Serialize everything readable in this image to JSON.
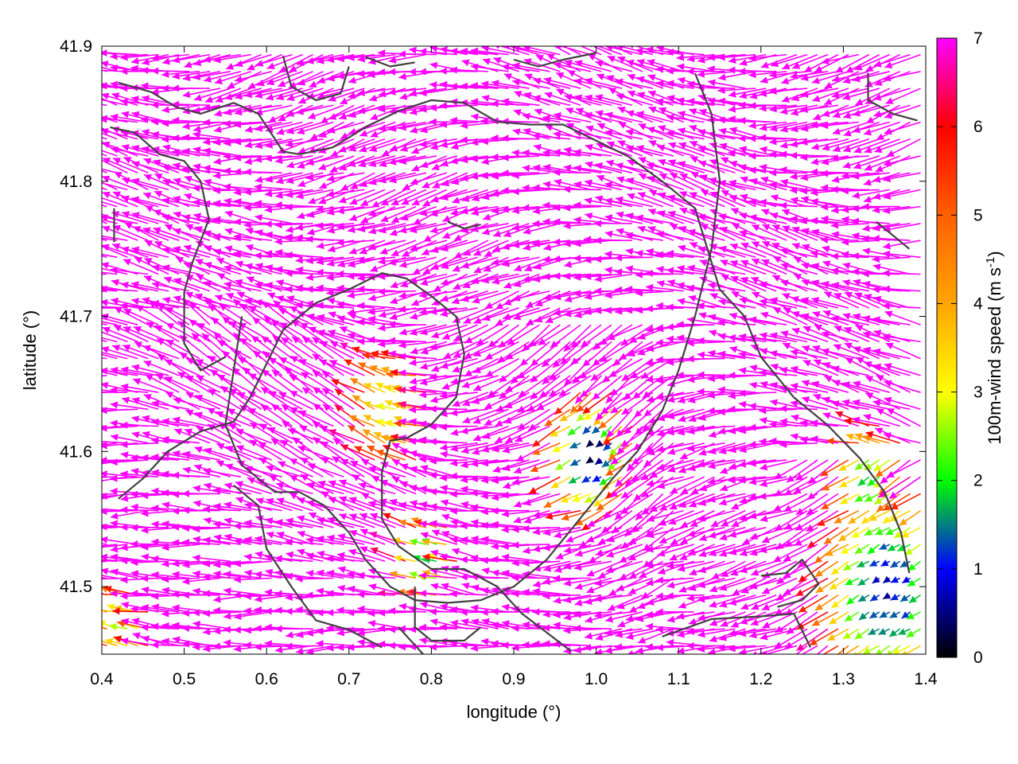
{
  "chart_data": {
    "type": "vector-field",
    "xlabel": "longitude (°)",
    "ylabel": "latitude (°)",
    "colorbar_label": "100m-wind speed (m s-1)",
    "colorbar_label_parts": {
      "pre": "100m-wind speed (m s",
      "sup": "-1",
      "post": ")"
    },
    "xlim": [
      0.4,
      1.4
    ],
    "ylim": [
      41.45,
      41.9
    ],
    "x_ticks": [
      0.4,
      0.5,
      0.6,
      0.7,
      0.8,
      0.9,
      1.0,
      1.1,
      1.2,
      1.3,
      1.4
    ],
    "x_tick_labels": [
      "0.4",
      "0.5",
      "0.6",
      "0.7",
      "0.8",
      "0.9",
      "1.0",
      "1.1",
      "1.2",
      "1.3",
      "1.4"
    ],
    "y_ticks": [
      41.5,
      41.6,
      41.7,
      41.8,
      41.9
    ],
    "y_tick_labels": [
      "41.5",
      "41.6",
      "41.7",
      "41.8",
      "41.9"
    ],
    "colorbar_range": [
      0,
      7
    ],
    "colorbar_ticks": [
      0,
      1,
      2,
      3,
      4,
      5,
      6,
      7
    ],
    "colorbar_tick_labels": [
      "0",
      "1",
      "2",
      "3",
      "4",
      "5",
      "6",
      "7"
    ],
    "colormap": [
      {
        "v": 0.0,
        "color": "#000000"
      },
      {
        "v": 1.0,
        "color": "#0000ff"
      },
      {
        "v": 2.0,
        "color": "#00ff00"
      },
      {
        "v": 3.0,
        "color": "#ffff00"
      },
      {
        "v": 4.0,
        "color": "#ffa500"
      },
      {
        "v": 5.0,
        "color": "#ff6000"
      },
      {
        "v": 6.0,
        "color": "#ff0000"
      },
      {
        "v": 7.0,
        "color": "#ff00ff"
      }
    ],
    "wind_field": {
      "grid_step_lon": 0.0125,
      "grid_step_lat": 0.0125,
      "dominant_direction": "from east to west",
      "low_speed_zones": [
        {
          "lon": 1.0,
          "lat": 41.6,
          "radius": 0.06,
          "min_speed": 0.3
        },
        {
          "lon": 1.36,
          "lat": 41.5,
          "radius": 0.1,
          "min_speed": 0.8
        },
        {
          "lon": 1.34,
          "lat": 41.58,
          "radius": 0.05,
          "min_speed": 1.8
        },
        {
          "lon": 0.8,
          "lat": 41.52,
          "radius": 0.04,
          "min_speed": 1.5
        },
        {
          "lon": 0.76,
          "lat": 41.63,
          "radius": 0.06,
          "min_speed": 3.0
        },
        {
          "lon": 0.43,
          "lat": 41.47,
          "radius": 0.04,
          "min_speed": 2.5
        }
      ],
      "high_speed_cap": 7
    },
    "contours": [
      [
        [
          0.42,
          41.873
        ],
        [
          0.46,
          41.866
        ],
        [
          0.49,
          41.855
        ],
        [
          0.52,
          41.85
        ],
        [
          0.56,
          41.858
        ],
        [
          0.59,
          41.85
        ],
        [
          0.62,
          41.822
        ],
        [
          0.64,
          41.82
        ],
        [
          0.68,
          41.825
        ],
        [
          0.72,
          41.84
        ],
        [
          0.76,
          41.852
        ],
        [
          0.8,
          41.86
        ],
        [
          0.84,
          41.858
        ],
        [
          0.88,
          41.844
        ],
        [
          0.92,
          41.842
        ],
        [
          0.96,
          41.842
        ],
        [
          1.0,
          41.83
        ],
        [
          1.04,
          41.818
        ],
        [
          1.08,
          41.8
        ],
        [
          1.12,
          41.78
        ],
        [
          1.15,
          41.72
        ],
        [
          1.18,
          41.7
        ],
        [
          1.2,
          41.67
        ],
        [
          1.24,
          41.64
        ],
        [
          1.28,
          41.62
        ],
        [
          1.32,
          41.595
        ],
        [
          1.35,
          41.57
        ],
        [
          1.37,
          41.54
        ],
        [
          1.38,
          41.51
        ]
      ],
      [
        [
          0.41,
          41.84
        ],
        [
          0.44,
          41.836
        ],
        [
          0.47,
          41.82
        ],
        [
          0.5,
          41.815
        ],
        [
          0.52,
          41.8
        ],
        [
          0.53,
          41.772
        ],
        [
          0.51,
          41.74
        ],
        [
          0.5,
          41.718
        ],
        [
          0.5,
          41.68
        ],
        [
          0.52,
          41.66
        ],
        [
          0.55,
          41.67
        ]
      ],
      [
        [
          0.42,
          41.565
        ],
        [
          0.45,
          41.58
        ],
        [
          0.48,
          41.6
        ],
        [
          0.52,
          41.615
        ],
        [
          0.56,
          41.622
        ],
        [
          0.58,
          41.64
        ],
        [
          0.6,
          41.665
        ],
        [
          0.62,
          41.69
        ],
        [
          0.66,
          41.71
        ],
        [
          0.7,
          41.72
        ],
        [
          0.74,
          41.732
        ],
        [
          0.77,
          41.728
        ],
        [
          0.8,
          41.715
        ],
        [
          0.83,
          41.7
        ],
        [
          0.84,
          41.672
        ],
        [
          0.83,
          41.64
        ],
        [
          0.8,
          41.62
        ],
        [
          0.77,
          41.61
        ],
        [
          0.75,
          41.608
        ],
        [
          0.74,
          41.585
        ],
        [
          0.74,
          41.55
        ],
        [
          0.76,
          41.53
        ],
        [
          0.8,
          41.513
        ],
        [
          0.84,
          41.513
        ],
        [
          0.88,
          41.5
        ],
        [
          0.91,
          41.48
        ],
        [
          0.94,
          41.466
        ],
        [
          0.97,
          41.452
        ]
      ],
      [
        [
          0.56,
          41.575
        ],
        [
          0.59,
          41.56
        ],
        [
          0.6,
          41.528
        ],
        [
          0.63,
          41.5
        ],
        [
          0.66,
          41.475
        ],
        [
          0.7,
          41.468
        ],
        [
          0.74,
          41.455
        ]
      ],
      [
        [
          0.57,
          41.7
        ],
        [
          0.56,
          41.66
        ],
        [
          0.55,
          41.62
        ],
        [
          0.57,
          41.59
        ],
        [
          0.61,
          41.57
        ],
        [
          0.64,
          41.57
        ],
        [
          0.67,
          41.56
        ],
        [
          0.7,
          41.54
        ],
        [
          0.72,
          41.52
        ],
        [
          0.75,
          41.5
        ],
        [
          0.78,
          41.49
        ],
        [
          0.82,
          41.488
        ],
        [
          0.86,
          41.49
        ],
        [
          0.9,
          41.5
        ],
        [
          0.94,
          41.52
        ],
        [
          0.98,
          41.55
        ],
        [
          1.02,
          41.58
        ],
        [
          1.05,
          41.6
        ],
        [
          1.08,
          41.63
        ],
        [
          1.1,
          41.66
        ],
        [
          1.12,
          41.7
        ],
        [
          1.14,
          41.75
        ],
        [
          1.15,
          41.8
        ],
        [
          1.14,
          41.85
        ],
        [
          1.12,
          41.88
        ]
      ],
      [
        [
          0.78,
          41.5
        ],
        [
          0.78,
          41.47
        ],
        [
          0.8,
          41.46
        ],
        [
          0.84,
          41.46
        ],
        [
          0.86,
          41.47
        ]
      ],
      [
        [
          0.76,
          41.47
        ],
        [
          0.79,
          41.45
        ]
      ],
      [
        [
          1.2,
          41.508
        ],
        [
          1.23,
          41.51
        ],
        [
          1.25,
          41.52
        ],
        [
          1.27,
          41.502
        ],
        [
          1.25,
          41.49
        ],
        [
          1.22,
          41.485
        ]
      ],
      [
        [
          1.08,
          41.463
        ],
        [
          1.14,
          41.476
        ],
        [
          1.2,
          41.478
        ],
        [
          1.24,
          41.48
        ],
        [
          1.26,
          41.455
        ]
      ],
      [
        [
          0.62,
          41.893
        ],
        [
          0.63,
          41.87
        ],
        [
          0.66,
          41.86
        ],
        [
          0.69,
          41.865
        ],
        [
          0.7,
          41.885
        ]
      ],
      [
        [
          0.72,
          41.892
        ],
        [
          0.75,
          41.885
        ],
        [
          0.78,
          41.888
        ]
      ],
      [
        [
          0.9,
          41.89
        ],
        [
          0.93,
          41.885
        ],
        [
          0.96,
          41.89
        ],
        [
          1.0,
          41.895
        ]
      ],
      [
        [
          0.82,
          41.77
        ],
        [
          0.84,
          41.765
        ],
        [
          0.86,
          41.768
        ]
      ],
      [
        [
          1.33,
          41.88
        ],
        [
          1.33,
          41.86
        ],
        [
          1.36,
          41.85
        ],
        [
          1.39,
          41.845
        ]
      ],
      [
        [
          1.34,
          41.77
        ],
        [
          1.36,
          41.76
        ],
        [
          1.38,
          41.75
        ]
      ],
      [
        [
          0.415,
          41.78
        ],
        [
          0.415,
          41.755
        ]
      ]
    ]
  }
}
